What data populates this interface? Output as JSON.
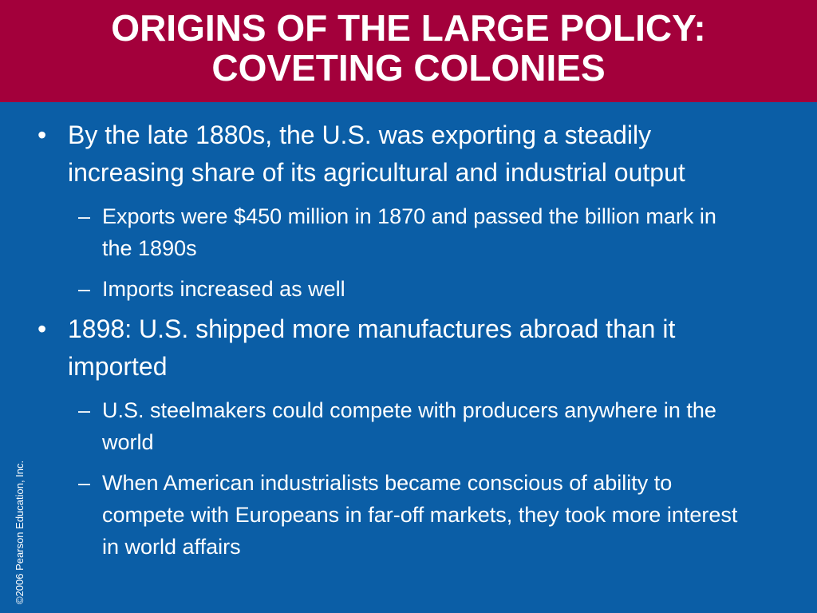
{
  "header": {
    "title": [
      "ORIGINS OF THE LARGE POLICY:",
      "COVETING COLONIES"
    ]
  },
  "bullets": [
    {
      "text": "By the late 1880s, the U.S. was exporting a steadily increasing share of its agricultural and industrial output",
      "subs": [
        "Exports were $450 million in 1870 and passed the billion mark in the 1890s",
        "Imports increased as well"
      ]
    },
    {
      "text": "1898: U.S. shipped more manufactures abroad than it imported",
      "subs": [
        "U.S. steelmakers could compete with producers anywhere in the world",
        "When American industrialists became conscious of ability to compete with Europeans in far-off markets, they took more interest in world affairs"
      ]
    }
  ],
  "footer": {
    "copyright": "©2006 Pearson Education, Inc."
  }
}
